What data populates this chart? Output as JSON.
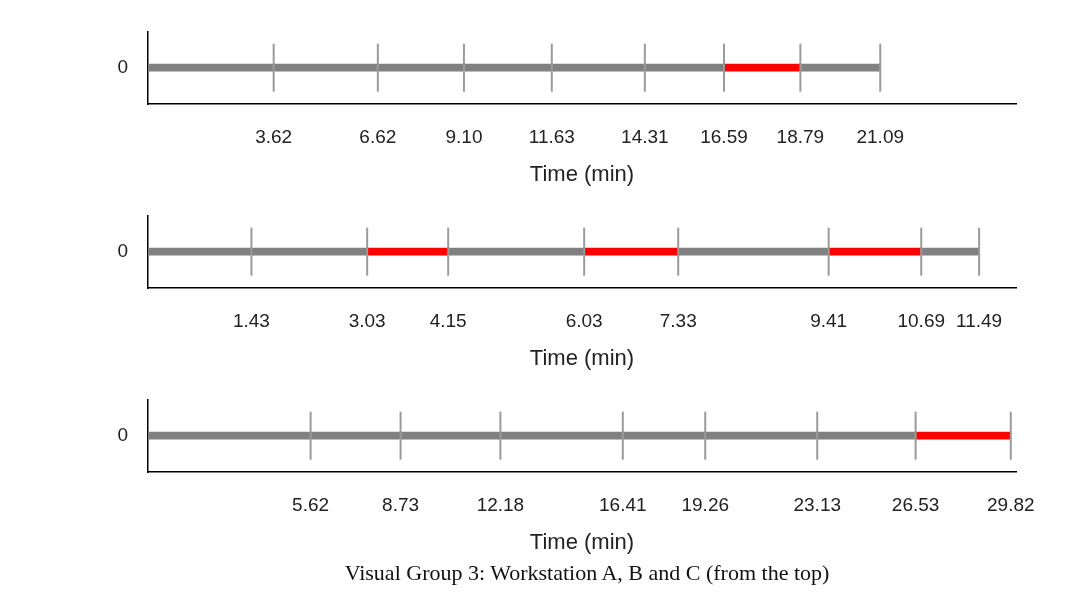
{
  "chart_data": [
    {
      "type": "bar",
      "orientation": "horizontal",
      "stacked": true,
      "categories": [
        "0"
      ],
      "xlabel": "Time (min)",
      "xlim": [
        0,
        25
      ],
      "xticks": [
        3.62,
        6.62,
        {
          "value": 9.1,
          "label": "9.10"
        },
        11.63,
        14.31,
        16.59,
        18.79,
        21.09
      ],
      "ref_lines": [
        {
          "axis": "x",
          "value": 3.62,
          "color": "#9a9a9a"
        },
        {
          "axis": "x",
          "value": 6.62,
          "color": "#9a9a9a"
        },
        {
          "axis": "x",
          "value": 9.1,
          "color": "#9a9a9a"
        },
        {
          "axis": "x",
          "value": 11.63,
          "color": "#9a9a9a"
        },
        {
          "axis": "x",
          "value": 14.31,
          "color": "#9a9a9a"
        },
        {
          "axis": "x",
          "value": 16.59,
          "color": "#9a9a9a"
        },
        {
          "axis": "x",
          "value": 18.79,
          "color": "#9a9a9a"
        },
        {
          "axis": "x",
          "value": 21.09,
          "color": "#9a9a9a"
        }
      ],
      "series": [
        {
          "color": "#808080",
          "values": [
            16.59
          ]
        },
        {
          "color": "#ff0000",
          "values": [
            2.2
          ]
        },
        {
          "color": "#808080",
          "values": [
            2.3
          ]
        }
      ]
    },
    {
      "type": "bar",
      "orientation": "horizontal",
      "stacked": true,
      "categories": [
        "0"
      ],
      "xlabel": "Time (min)",
      "xlim": [
        0,
        12
      ],
      "xticks": [
        1.43,
        3.03,
        4.15,
        6.03,
        7.33,
        9.41,
        10.69,
        11.49
      ],
      "ref_lines": [
        {
          "axis": "x",
          "value": 1.43,
          "color": "#9a9a9a"
        },
        {
          "axis": "x",
          "value": 3.03,
          "color": "#9a9a9a"
        },
        {
          "axis": "x",
          "value": 4.15,
          "color": "#9a9a9a"
        },
        {
          "axis": "x",
          "value": 6.03,
          "color": "#9a9a9a"
        },
        {
          "axis": "x",
          "value": 7.33,
          "color": "#9a9a9a"
        },
        {
          "axis": "x",
          "value": 9.41,
          "color": "#9a9a9a"
        },
        {
          "axis": "x",
          "value": 10.69,
          "color": "#9a9a9a"
        },
        {
          "axis": "x",
          "value": 11.49,
          "color": "#9a9a9a"
        }
      ],
      "series": [
        {
          "color": "#808080",
          "values": [
            3.03
          ]
        },
        {
          "color": "#ff0000",
          "values": [
            1.12
          ]
        },
        {
          "color": "#808080",
          "values": [
            1.88
          ]
        },
        {
          "color": "#ff0000",
          "values": [
            1.3
          ]
        },
        {
          "color": "#808080",
          "values": [
            2.08
          ]
        },
        {
          "color": "#ff0000",
          "values": [
            1.28
          ]
        },
        {
          "color": "#808080",
          "values": [
            0.8
          ]
        }
      ]
    },
    {
      "type": "bar",
      "orientation": "horizontal",
      "stacked": true,
      "categories": [
        "0"
      ],
      "xlabel": "Time (min)",
      "xlim": [
        0,
        30
      ],
      "xticks": [
        5.62,
        8.73,
        12.18,
        16.41,
        19.26,
        23.13,
        26.53,
        29.82
      ],
      "ref_lines": [
        {
          "axis": "x",
          "value": 5.62,
          "color": "#9a9a9a"
        },
        {
          "axis": "x",
          "value": 8.73,
          "color": "#9a9a9a"
        },
        {
          "axis": "x",
          "value": 12.18,
          "color": "#9a9a9a"
        },
        {
          "axis": "x",
          "value": 16.41,
          "color": "#9a9a9a"
        },
        {
          "axis": "x",
          "value": 19.26,
          "color": "#9a9a9a"
        },
        {
          "axis": "x",
          "value": 23.13,
          "color": "#9a9a9a"
        },
        {
          "axis": "x",
          "value": 26.53,
          "color": "#9a9a9a"
        },
        {
          "axis": "x",
          "value": 29.82,
          "color": "#9a9a9a"
        }
      ],
      "annotations": [
        "Visual Group 3: Workstation A, B and C (from the top)"
      ],
      "series": [
        {
          "color": "#808080",
          "values": [
            26.53
          ]
        },
        {
          "color": "#ff0000",
          "values": [
            3.29
          ]
        }
      ]
    }
  ]
}
